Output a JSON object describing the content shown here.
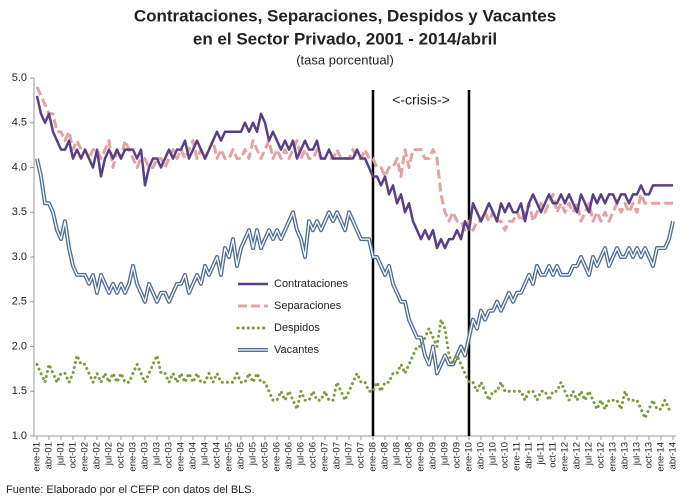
{
  "chart_data": {
    "type": "line",
    "title": [
      "Contrataciones, Separaciones, Despidos y Vacantes",
      "en el Sector Privado, 2001 - 2014/abril"
    ],
    "subtitle": "(tasa porcentual)",
    "source": "Fuente: Elaborado por el CEFP con datos del BLS.",
    "crisis": {
      "label": "<-crisis->",
      "start": "ene-08",
      "end": "ene-10"
    },
    "ylim": [
      1,
      5
    ],
    "yticks": [
      {
        "value": 1,
        "label": "1.0"
      },
      {
        "value": 1.5,
        "label": "1.5"
      },
      {
        "value": 2,
        "label": "2.0"
      },
      {
        "value": 2.5,
        "label": "2.5"
      },
      {
        "value": 3,
        "label": "3.0"
      },
      {
        "value": 3.5,
        "label": "3.5"
      },
      {
        "value": 4,
        "label": "4.0"
      },
      {
        "value": 4.5,
        "label": "4.5"
      },
      {
        "value": 5,
        "label": "5.0"
      }
    ],
    "grid": false,
    "legend": "center-left",
    "categories": [
      "ene-01",
      null,
      null,
      "abr-01",
      null,
      null,
      "jul-01",
      null,
      null,
      "oct-01",
      null,
      null,
      "ene-02",
      null,
      null,
      "abr-02",
      null,
      null,
      "jul-02",
      null,
      null,
      "oct-02",
      null,
      null,
      "ene-03",
      null,
      null,
      "abr-03",
      null,
      null,
      "jul-03",
      null,
      null,
      "oct-03",
      null,
      null,
      "ene-04",
      null,
      null,
      "abr-04",
      null,
      null,
      "jul-04",
      null,
      null,
      "oct-04",
      null,
      null,
      "ene-05",
      null,
      null,
      "abr-05",
      null,
      null,
      "jul-05",
      null,
      null,
      "oct-05",
      null,
      null,
      "ene-06",
      null,
      null,
      "abr-06",
      null,
      null,
      "jul-06",
      null,
      null,
      "oct-06",
      null,
      null,
      "ene-07",
      null,
      null,
      "abr-07",
      null,
      null,
      "jul-07",
      null,
      null,
      "oct-07",
      null,
      null,
      "ene-08",
      null,
      null,
      "abr-08",
      null,
      null,
      "jul-08",
      null,
      null,
      "oct-08",
      null,
      null,
      "ene-09",
      null,
      null,
      "abr-09",
      null,
      null,
      "jul-09",
      null,
      null,
      "oct-09",
      null,
      null,
      "ene-10",
      null,
      null,
      "abr-10",
      null,
      null,
      "jul-10",
      null,
      null,
      "oct-10",
      null,
      null,
      "ene-11",
      null,
      null,
      "abr-11",
      null,
      null,
      "jul-11",
      null,
      null,
      "oct-11",
      null,
      null,
      "ene-12",
      null,
      null,
      "abr-12",
      null,
      null,
      "jul-12",
      null,
      null,
      "oct-12",
      null,
      null,
      "ene-13",
      null,
      null,
      "abr-13",
      null,
      null,
      "jul-13",
      null,
      null,
      "oct-13",
      null,
      null,
      "ene-14",
      null,
      null,
      "abr-14"
    ],
    "series": [
      {
        "name": "Contrataciones",
        "color": "#5b3f86",
        "style": "solid",
        "values": [
          4.8,
          4.6,
          4.5,
          4.6,
          4.4,
          4.3,
          4.2,
          4.2,
          4.3,
          4.1,
          4.2,
          4.1,
          4.2,
          4.1,
          4.0,
          4.2,
          3.9,
          4.1,
          4.2,
          4.1,
          4.2,
          4.1,
          4.2,
          4.2,
          4.2,
          4.1,
          4.2,
          3.8,
          4.0,
          4.1,
          4.1,
          4.0,
          4.1,
          4.2,
          4.1,
          4.2,
          4.2,
          4.3,
          4.1,
          4.2,
          4.3,
          4.2,
          4.1,
          4.2,
          4.3,
          4.4,
          4.3,
          4.4,
          4.4,
          4.4,
          4.4,
          4.4,
          4.5,
          4.4,
          4.5,
          4.4,
          4.6,
          4.5,
          4.3,
          4.4,
          4.3,
          4.2,
          4.3,
          4.2,
          4.3,
          4.1,
          4.2,
          4.3,
          4.2,
          4.2,
          4.3,
          4.1,
          4.1,
          4.2,
          4.1,
          4.1,
          4.1,
          4.1,
          4.1,
          4.1,
          4.2,
          4.1,
          4.1,
          4.0,
          3.9,
          3.9,
          3.8,
          3.9,
          3.7,
          3.8,
          3.6,
          3.7,
          3.5,
          3.6,
          3.4,
          3.3,
          3.2,
          3.3,
          3.2,
          3.3,
          3.1,
          3.2,
          3.1,
          3.2,
          3.2,
          3.3,
          3.2,
          3.4,
          3.3,
          3.6,
          3.5,
          3.4,
          3.5,
          3.6,
          3.5,
          3.4,
          3.6,
          3.5,
          3.6,
          3.5,
          3.5,
          3.6,
          3.4,
          3.6,
          3.7,
          3.6,
          3.5,
          3.6,
          3.7,
          3.6,
          3.6,
          3.7,
          3.6,
          3.7,
          3.6,
          3.5,
          3.7,
          3.6,
          3.5,
          3.7,
          3.6,
          3.7,
          3.6,
          3.7,
          3.7,
          3.6,
          3.7,
          3.7,
          3.6,
          3.7,
          3.7,
          3.8,
          3.7,
          3.7,
          3.8,
          3.8,
          3.8,
          3.8,
          3.8,
          3.8
        ]
      },
      {
        "name": "Separaciones",
        "color": "#e3a3a3",
        "style": "dashed",
        "values": [
          4.9,
          4.8,
          4.7,
          4.6,
          4.6,
          4.4,
          4.4,
          4.3,
          4.4,
          4.2,
          4.3,
          4.2,
          4.2,
          4.1,
          4.2,
          4.2,
          4.1,
          4.2,
          4.3,
          4.0,
          4.2,
          4.1,
          4.3,
          4.2,
          4.1,
          4.0,
          4.1,
          4.1,
          4.0,
          4.0,
          4.1,
          4.1,
          4.0,
          4.1,
          4.2,
          4.1,
          4.2,
          4.1,
          4.2,
          4.3,
          4.1,
          4.2,
          4.1,
          4.2,
          4.3,
          4.1,
          4.2,
          4.1,
          4.1,
          4.2,
          4.1,
          4.1,
          4.2,
          4.1,
          4.3,
          4.2,
          4.1,
          4.2,
          4.3,
          4.1,
          4.2,
          4.1,
          4.2,
          4.1,
          4.2,
          4.3,
          4.1,
          4.2,
          4.1,
          4.1,
          4.2,
          4.1,
          4.1,
          4.1,
          4.1,
          4.2,
          4.1,
          4.1,
          4.1,
          4.2,
          4.1,
          4.1,
          4.2,
          4.1,
          4.1,
          4.0,
          4.0,
          3.9,
          4.0,
          4.0,
          4.1,
          3.9,
          4.2,
          4.0,
          4.2,
          4.2,
          4.2,
          4.1,
          4.1,
          4.2,
          4.1,
          3.7,
          3.5,
          3.4,
          3.5,
          3.4,
          3.4,
          3.3,
          3.4,
          3.3,
          3.4,
          3.4,
          3.5,
          3.4,
          3.5,
          3.4,
          3.4,
          3.3,
          3.4,
          3.4,
          3.5,
          3.4,
          3.5,
          3.6,
          3.4,
          3.5,
          3.6,
          3.5,
          3.6,
          3.7,
          3.5,
          3.6,
          3.5,
          3.6,
          3.5,
          3.6,
          3.4,
          3.5,
          3.6,
          3.4,
          3.5,
          3.4,
          3.5,
          3.4,
          3.5,
          3.6,
          3.5,
          3.6,
          3.5,
          3.6,
          3.5,
          3.7,
          3.6,
          3.6,
          3.6,
          3.6,
          3.6,
          3.6,
          3.6,
          3.6
        ]
      },
      {
        "name": "Despidos",
        "color": "#7f9c3c",
        "style": "dotted",
        "values": [
          1.8,
          1.7,
          1.6,
          1.8,
          1.7,
          1.6,
          1.7,
          1.7,
          1.6,
          1.7,
          1.9,
          1.8,
          1.8,
          1.7,
          1.6,
          1.7,
          1.6,
          1.7,
          1.6,
          1.7,
          1.6,
          1.7,
          1.6,
          1.6,
          1.7,
          1.8,
          1.7,
          1.6,
          1.7,
          1.8,
          1.9,
          1.7,
          1.7,
          1.6,
          1.7,
          1.6,
          1.7,
          1.6,
          1.7,
          1.6,
          1.7,
          1.6,
          1.6,
          1.7,
          1.6,
          1.7,
          1.6,
          1.6,
          1.6,
          1.6,
          1.7,
          1.6,
          1.6,
          1.7,
          1.6,
          1.7,
          1.6,
          1.6,
          1.5,
          1.4,
          1.4,
          1.5,
          1.4,
          1.5,
          1.4,
          1.3,
          1.5,
          1.4,
          1.4,
          1.5,
          1.4,
          1.4,
          1.5,
          1.4,
          1.4,
          1.6,
          1.5,
          1.4,
          1.5,
          1.6,
          1.7,
          1.6,
          1.6,
          1.5,
          1.5,
          1.6,
          1.5,
          1.6,
          1.6,
          1.7,
          1.7,
          1.8,
          1.7,
          1.8,
          1.9,
          2.0,
          2.0,
          2.1,
          2.2,
          2.1,
          2.0,
          2.3,
          2.2,
          1.9,
          1.8,
          1.9,
          1.8,
          1.7,
          1.6,
          1.6,
          1.5,
          1.6,
          1.5,
          1.4,
          1.5,
          1.5,
          1.6,
          1.5,
          1.5,
          1.5,
          1.5,
          1.5,
          1.4,
          1.5,
          1.5,
          1.4,
          1.5,
          1.5,
          1.4,
          1.5,
          1.5,
          1.6,
          1.5,
          1.4,
          1.5,
          1.4,
          1.5,
          1.4,
          1.5,
          1.4,
          1.3,
          1.4,
          1.3,
          1.4,
          1.4,
          1.4,
          1.3,
          1.5,
          1.4,
          1.4,
          1.4,
          1.3,
          1.2,
          1.3,
          1.4,
          1.3,
          1.3,
          1.4,
          1.3,
          1.3
        ]
      },
      {
        "name": "Vacantes",
        "color": "#4f6e94",
        "style": "double",
        "values": [
          4.1,
          3.9,
          3.6,
          3.6,
          3.5,
          3.3,
          3.2,
          3.4,
          3.1,
          2.9,
          2.8,
          2.8,
          2.8,
          2.7,
          2.8,
          2.6,
          2.8,
          2.7,
          2.6,
          2.7,
          2.6,
          2.7,
          2.6,
          2.7,
          2.9,
          2.7,
          2.6,
          2.5,
          2.7,
          2.6,
          2.5,
          2.6,
          2.6,
          2.5,
          2.6,
          2.7,
          2.7,
          2.8,
          2.6,
          2.7,
          2.8,
          2.7,
          2.9,
          2.8,
          2.9,
          3.0,
          2.8,
          3.1,
          3.0,
          3.2,
          2.9,
          3.1,
          3.2,
          3.3,
          3.1,
          3.3,
          3.1,
          3.2,
          3.3,
          3.2,
          3.3,
          3.2,
          3.3,
          3.4,
          3.5,
          3.3,
          3.2,
          3.0,
          3.4,
          3.3,
          3.4,
          3.3,
          3.4,
          3.5,
          3.4,
          3.5,
          3.4,
          3.3,
          3.5,
          3.4,
          3.3,
          3.2,
          3.2,
          3.2,
          3.0,
          3.0,
          2.9,
          2.8,
          2.9,
          2.7,
          2.6,
          2.5,
          2.5,
          2.3,
          2.2,
          2.1,
          2.1,
          1.9,
          1.8,
          2.0,
          1.7,
          1.8,
          1.9,
          1.8,
          1.8,
          1.9,
          2.0,
          1.9,
          2.1,
          2.3,
          2.2,
          2.4,
          2.3,
          2.4,
          2.4,
          2.5,
          2.4,
          2.5,
          2.6,
          2.5,
          2.6,
          2.6,
          2.7,
          2.8,
          2.7,
          2.9,
          2.8,
          2.8,
          2.9,
          2.8,
          2.9,
          2.8,
          2.8,
          2.8,
          2.9,
          2.9,
          3.0,
          2.9,
          2.8,
          3.0,
          2.9,
          3.0,
          3.1,
          2.9,
          3.0,
          3.1,
          3.0,
          3.0,
          3.1,
          3.0,
          3.1,
          3.0,
          3.1,
          3.0,
          2.9,
          3.1,
          3.1,
          3.1,
          3.2,
          3.4
        ]
      }
    ]
  }
}
